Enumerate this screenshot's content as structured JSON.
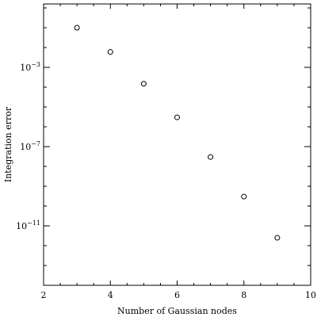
{
  "chart_data": {
    "type": "scatter",
    "title": "",
    "xlabel": "Number of Gaussian nodes",
    "ylabel": "Integration error",
    "xlim": [
      2,
      10
    ],
    "ylim_log10": [
      -14.0,
      0.2
    ],
    "yscale": "log",
    "grid": false,
    "legend": "none",
    "x_ticks": [
      2,
      4,
      6,
      8,
      10
    ],
    "x_tick_labels": [
      "2",
      "4",
      "6",
      "8",
      "10"
    ],
    "y_tick_exponents": [
      -3,
      -7,
      -11
    ],
    "y_tick_base": "10",
    "y_tick_labels": [
      "−3",
      "−7",
      "−11"
    ],
    "marker": "open-circle",
    "marker_color": "#000000",
    "series": [
      {
        "x": [
          3,
          4,
          5,
          6,
          7,
          8,
          9
        ],
        "y": [
          0.1,
          0.006,
          0.00015,
          3e-06,
          3e-08,
          3e-10,
          2.5e-12
        ]
      }
    ]
  }
}
